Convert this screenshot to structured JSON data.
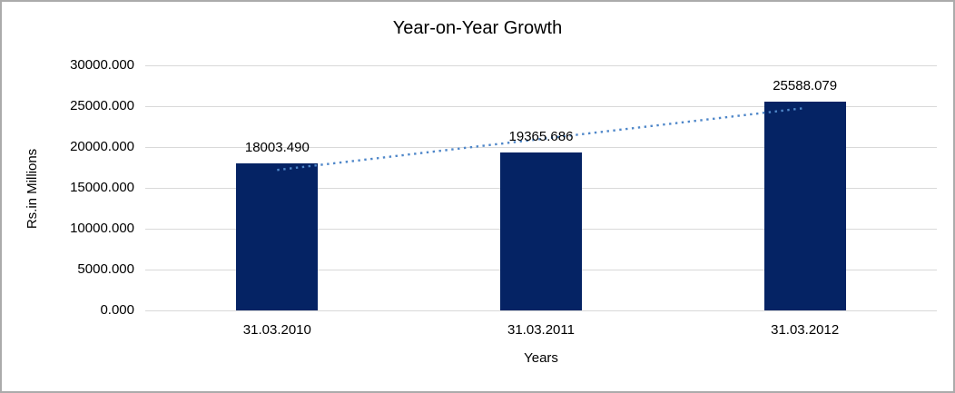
{
  "chart_data": {
    "type": "bar",
    "title": "Year-on-Year Growth",
    "categories": [
      "31.03.2010",
      "31.03.2011",
      "31.03.2012"
    ],
    "values": [
      18003.49,
      19365.686,
      25588.079
    ],
    "data_labels": [
      "18003.490",
      "19365.686",
      "25588.079"
    ],
    "xlabel": "Years",
    "ylabel": "Rs.in Millions",
    "ylim": [
      0,
      30000
    ],
    "ytick_step": 5000,
    "ytick_labels": [
      "0.000",
      "5000.000",
      "10000.000",
      "15000.000",
      "20000.000",
      "25000.000",
      "30000.000"
    ],
    "grid": true,
    "legend": "none",
    "bar_color": "#052364",
    "gridline_color": "#d9d9d9",
    "text_color": "#000000",
    "border_color": "#ababab",
    "trendline": {
      "fit": "linear",
      "style": "dotted",
      "color": "#4f87c9"
    }
  }
}
